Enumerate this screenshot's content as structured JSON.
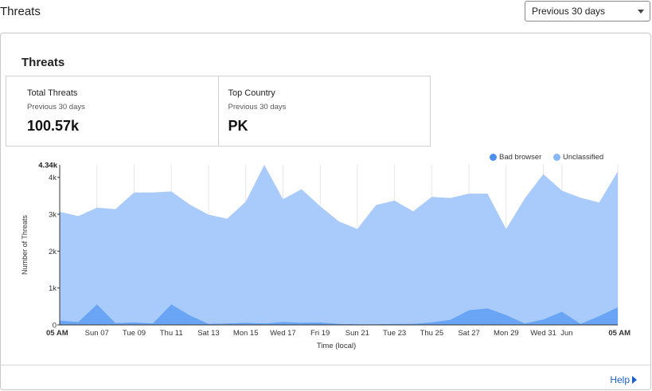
{
  "header": {
    "title": "Threats"
  },
  "range_select": {
    "value": "Previous 30 days"
  },
  "card": {
    "title": "Threats",
    "stats": [
      {
        "label": "Total Threats",
        "sub": "Previous 30 days",
        "value": "100.57k"
      },
      {
        "label": "Top Country",
        "sub": "Previous 30 days",
        "value": "PK"
      }
    ]
  },
  "help": {
    "label": "Help"
  },
  "colors": {
    "bad_browser": "#6aa5f5",
    "unclassified": "#a9cbfb",
    "help_link": "#1a5fc9"
  },
  "chart_data": {
    "type": "area",
    "stacked": true,
    "xlabel": "Time (local)",
    "ylabel": "Number of Threats",
    "y_max_label": "4.34k",
    "ylim": [
      0,
      4340
    ],
    "yticks": [
      {
        "value": 0,
        "label": "0"
      },
      {
        "value": 1000,
        "label": "1k"
      },
      {
        "value": 2000,
        "label": "2k"
      },
      {
        "value": 3000,
        "label": "3k"
      },
      {
        "value": 4000,
        "label": "4k"
      }
    ],
    "x_labels": [
      {
        "i": 0,
        "label": "05 AM",
        "bold": true
      },
      {
        "i": 2,
        "label": "Sun 07"
      },
      {
        "i": 4,
        "label": "Tue 09"
      },
      {
        "i": 6,
        "label": "Thu 11"
      },
      {
        "i": 8,
        "label": "Sat 13"
      },
      {
        "i": 10,
        "label": "Mon 15"
      },
      {
        "i": 12,
        "label": "Wed 17"
      },
      {
        "i": 14,
        "label": "Fri 19"
      },
      {
        "i": 16,
        "label": "Sun 21"
      },
      {
        "i": 18,
        "label": "Tue 23"
      },
      {
        "i": 20,
        "label": "Thu 25"
      },
      {
        "i": 22,
        "label": "Sat 27"
      },
      {
        "i": 24,
        "label": "Mon 29"
      },
      {
        "i": 26,
        "label": "Wed 31"
      },
      {
        "i": 27,
        "label": "Jun"
      },
      {
        "i": 30,
        "label": "05 AM",
        "bold": true
      }
    ],
    "legend_position": "top-right",
    "grid": true,
    "series": [
      {
        "name": "Bad browser",
        "color": "#6aa5f5",
        "values": [
          120,
          80,
          560,
          50,
          70,
          40,
          560,
          260,
          30,
          40,
          60,
          40,
          80,
          60,
          70,
          30,
          20,
          20,
          30,
          30,
          70,
          140,
          400,
          450,
          270,
          40,
          150,
          360,
          30,
          240,
          480
        ]
      },
      {
        "name": "Unclassified",
        "color": "#a9cbfb",
        "values": [
          2950,
          2870,
          2620,
          3090,
          3520,
          3550,
          3060,
          3000,
          2960,
          2840,
          3280,
          4300,
          3330,
          3620,
          3150,
          2780,
          2580,
          3230,
          3340,
          3050,
          3400,
          3300,
          3160,
          3110,
          2330,
          3390,
          3940,
          3280,
          3420,
          3080,
          3680
        ]
      }
    ]
  }
}
